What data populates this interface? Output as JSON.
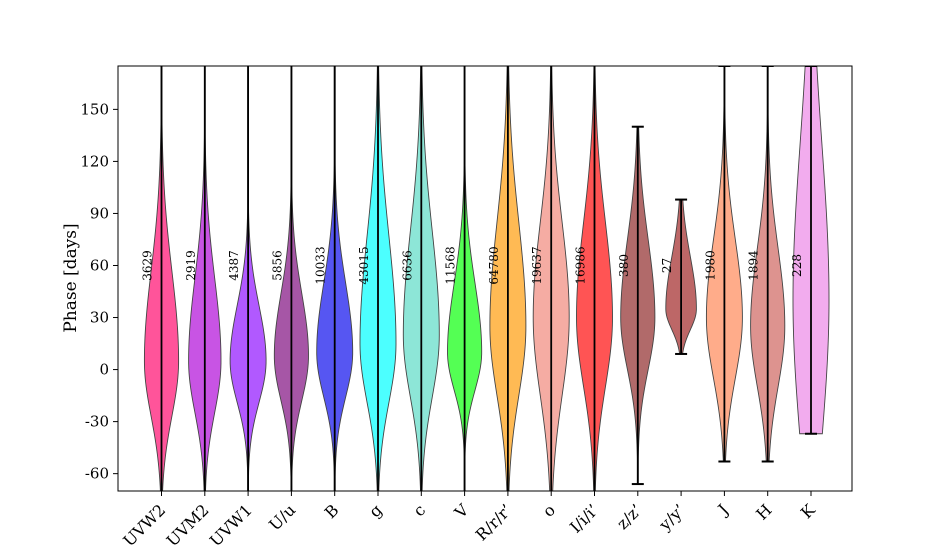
{
  "chart_data": {
    "type": "violin",
    "title": "",
    "xlabel": "",
    "ylabel": "Phase [days]",
    "ylim": [
      -70,
      175
    ],
    "yticks": [
      -60,
      -30,
      0,
      30,
      60,
      90,
      120,
      150
    ],
    "grid": false,
    "count_label_y": 60,
    "series": [
      {
        "name": "UVW2",
        "count": "3629",
        "color": "#ff3c8c",
        "min": -70,
        "max": 175,
        "mode": 5,
        "width": 0.95,
        "spread_low": 32,
        "spread_high": 52,
        "extrema": false
      },
      {
        "name": "UVM2",
        "count": "2919",
        "color": "#c03ce0",
        "min": -70,
        "max": 175,
        "mode": 5,
        "width": 0.9,
        "spread_low": 30,
        "spread_high": 48,
        "extrema": false
      },
      {
        "name": "UVW1",
        "count": "4387",
        "color": "#a642ff",
        "min": -70,
        "max": 175,
        "mode": 5,
        "width": 1.0,
        "spread_low": 24,
        "spread_high": 32,
        "extrema": false
      },
      {
        "name": "U/u",
        "count": "5856",
        "color": "#9a3f9a",
        "min": -70,
        "max": 175,
        "mode": 8,
        "width": 0.95,
        "spread_low": 26,
        "spread_high": 36,
        "extrema": false
      },
      {
        "name": "B",
        "count": "10033",
        "color": "#3f3ff0",
        "min": -70,
        "max": 175,
        "mode": 10,
        "width": 1.0,
        "spread_low": 26,
        "spread_high": 40,
        "extrema": false
      },
      {
        "name": "g",
        "count": "43015",
        "color": "#33ffff",
        "min": -70,
        "max": 175,
        "mode": 15,
        "width": 1.0,
        "spread_low": 34,
        "spread_high": 62,
        "extrema": false
      },
      {
        "name": "c",
        "count": "6636",
        "color": "#7de2d2",
        "min": -70,
        "max": 175,
        "mode": 20,
        "width": 1.0,
        "spread_low": 36,
        "spread_high": 60,
        "extrema": false
      },
      {
        "name": "V",
        "count": "11568",
        "color": "#3cff3c",
        "min": -70,
        "max": 175,
        "mode": 10,
        "width": 0.95,
        "spread_low": 22,
        "spread_high": 40,
        "extrema": false
      },
      {
        "name": "R/r/r’",
        "count": "64780",
        "color": "#ffb03c",
        "min": -70,
        "max": 175,
        "mode": 25,
        "width": 1.0,
        "spread_low": 40,
        "spread_high": 60,
        "extrema": false
      },
      {
        "name": "o",
        "count": "19637",
        "color": "#f4a096",
        "min": -70,
        "max": 175,
        "mode": 30,
        "width": 1.0,
        "spread_low": 45,
        "spread_high": 55,
        "extrema": false
      },
      {
        "name": "I/i/i’",
        "count": "16986",
        "color": "#ff3c3c",
        "min": -70,
        "max": 175,
        "mode": 30,
        "width": 1.0,
        "spread_low": 40,
        "spread_high": 55,
        "extrema": false
      },
      {
        "name": "z/z’",
        "count": "380",
        "color": "#a65555",
        "min": -66,
        "max": 140,
        "mode": 30,
        "width": 0.95,
        "spread_low": 30,
        "spread_high": 45,
        "extrema": true
      },
      {
        "name": "y/y’",
        "count": "27",
        "color": "#b45252",
        "min": 9,
        "max": 98,
        "mode": 35,
        "width": 0.85,
        "spread_low": 12,
        "spread_high": 30,
        "extrema": true
      },
      {
        "name": "J",
        "count": "1980",
        "color": "#ffa07a",
        "min": -53,
        "max": 175,
        "mode": 30,
        "width": 1.0,
        "spread_low": 35,
        "spread_high": 45,
        "extrema": true
      },
      {
        "name": "H",
        "count": "1894",
        "color": "#d88480",
        "min": -53,
        "max": 175,
        "mode": 25,
        "width": 0.95,
        "spread_low": 35,
        "spread_high": 45,
        "extrema": true
      },
      {
        "name": "K",
        "count": "228",
        "color": "#f0a0ec",
        "min": -37,
        "max": 175,
        "mode": 40,
        "width": 1.0,
        "spread_low": 80,
        "spread_high": 90,
        "extrema": true
      }
    ]
  }
}
